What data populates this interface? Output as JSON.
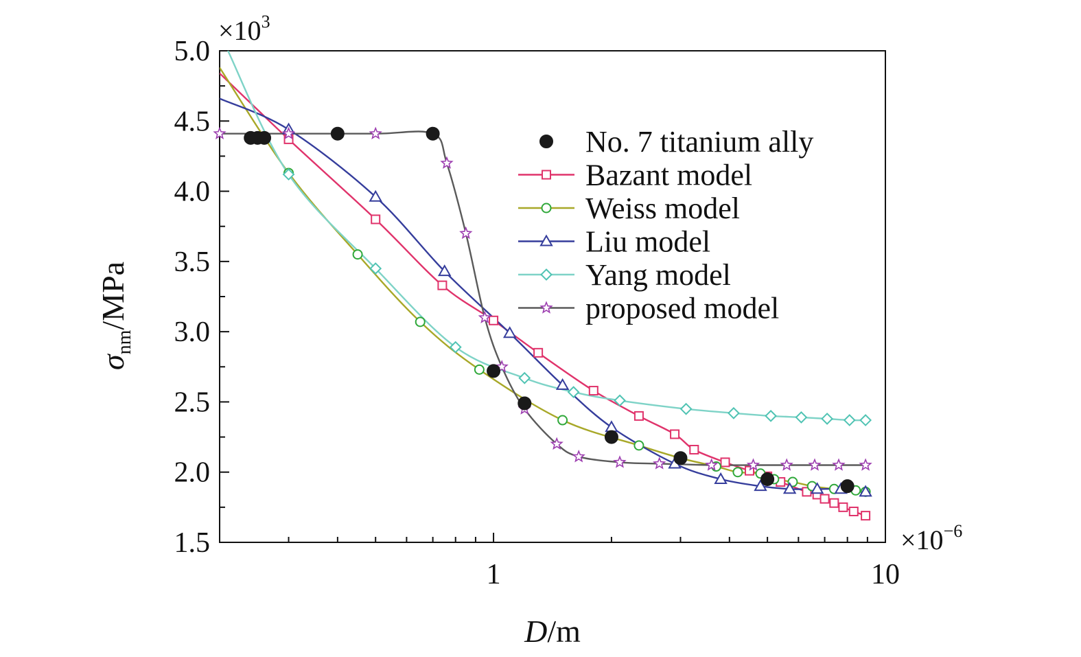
{
  "chart_data": {
    "type": "line",
    "xscale": "log",
    "xlim": [
      0.2,
      10
    ],
    "ylim": [
      1.5,
      5.0
    ],
    "x_multiplier": "×10",
    "x_multiplier_exp": "−6",
    "y_multiplier": "×10",
    "y_multiplier_exp": "3",
    "xlabel_main": "D",
    "xlabel_unit": "/m",
    "ylabel_main": "σ",
    "ylabel_sub": "nm",
    "ylabel_unit": "/MPa",
    "x_tick_labels": [
      {
        "value": 1,
        "label": "1"
      },
      {
        "value": 10,
        "label": "10"
      }
    ],
    "y_tick_labels": [
      {
        "value": 1.5,
        "label": "1.5"
      },
      {
        "value": 2.0,
        "label": "2.0"
      },
      {
        "value": 2.5,
        "label": "2.5"
      },
      {
        "value": 3.0,
        "label": "3.0"
      },
      {
        "value": 3.5,
        "label": "3.5"
      },
      {
        "value": 4.0,
        "label": "4.0"
      },
      {
        "value": 4.5,
        "label": "4.5"
      },
      {
        "value": 5.0,
        "label": "5.0"
      }
    ],
    "legend_position": "top-right",
    "series": [
      {
        "name": "No. 7 titanium ally",
        "kind": "points",
        "marker": "filled-circle",
        "color": "#1a1a1a",
        "x": [
          0.24,
          0.25,
          0.26,
          0.4,
          0.7,
          1.0,
          1.2,
          2.0,
          3.0,
          5.0,
          8.0
        ],
        "y": [
          4.38,
          4.38,
          4.38,
          4.41,
          4.41,
          2.72,
          2.49,
          2.25,
          2.1,
          1.95,
          1.9
        ]
      },
      {
        "name": "Bazant model",
        "kind": "line",
        "marker": "square",
        "color": "#e0336b",
        "marker_color": "#e0336b",
        "x": [
          0.2,
          0.3,
          0.5,
          0.74,
          1.0,
          1.3,
          1.8,
          2.35,
          2.9,
          3.25,
          3.9,
          4.5,
          5.0,
          5.4,
          6.3,
          6.7,
          7.0,
          7.4,
          7.8,
          8.3,
          8.9
        ],
        "y": [
          4.84,
          4.37,
          3.8,
          3.33,
          3.08,
          2.85,
          2.58,
          2.4,
          2.27,
          2.16,
          2.07,
          2.01,
          1.97,
          1.93,
          1.86,
          1.84,
          1.81,
          1.78,
          1.75,
          1.72,
          1.69
        ]
      },
      {
        "name": "Weiss model",
        "kind": "line",
        "marker": "circle",
        "color": "#a8a828",
        "marker_color": "#2fa83a",
        "x": [
          0.2,
          0.3,
          0.45,
          0.65,
          0.92,
          1.5,
          2.35,
          3.0,
          3.7,
          4.2,
          4.8,
          5.2,
          5.8,
          6.5,
          7.4,
          8.4,
          8.9
        ],
        "y": [
          4.88,
          4.13,
          3.55,
          3.07,
          2.73,
          2.37,
          2.19,
          2.1,
          2.04,
          2.0,
          1.99,
          1.95,
          1.93,
          1.9,
          1.88,
          1.87,
          1.86
        ]
      },
      {
        "name": "Liu model",
        "kind": "line",
        "marker": "triangle",
        "color": "#353d9c",
        "marker_color": "#353d9c",
        "x": [
          0.2,
          0.3,
          0.5,
          0.75,
          1.1,
          1.5,
          2.0,
          2.9,
          3.8,
          4.8,
          5.7,
          6.7,
          7.7,
          8.9
        ],
        "y": [
          4.66,
          4.44,
          3.96,
          3.43,
          2.99,
          2.62,
          2.32,
          2.06,
          1.95,
          1.9,
          1.88,
          1.88,
          1.88,
          1.86
        ]
      },
      {
        "name": "Yang model",
        "kind": "line",
        "marker": "diamond",
        "color": "#7ed3c7",
        "marker_color": "#4fc3b3",
        "x": [
          0.21,
          0.3,
          0.5,
          0.8,
          1.2,
          1.6,
          2.1,
          3.1,
          4.1,
          5.1,
          6.1,
          7.1,
          8.1,
          8.9
        ],
        "y": [
          5.0,
          4.12,
          3.45,
          2.89,
          2.67,
          2.57,
          2.51,
          2.45,
          2.42,
          2.4,
          2.39,
          2.38,
          2.37,
          2.37
        ]
      },
      {
        "name": "proposed model",
        "kind": "line",
        "marker": "star",
        "color": "#5a5a5a",
        "marker_color": "#9d3eb0",
        "x": [
          0.2,
          0.3,
          0.5,
          0.7,
          0.76,
          0.85,
          0.95,
          1.05,
          1.2,
          1.45,
          1.65,
          2.1,
          2.65,
          3.6,
          4.6,
          5.6,
          6.6,
          7.6,
          8.9
        ],
        "y": [
          4.41,
          4.41,
          4.41,
          4.41,
          4.2,
          3.7,
          3.1,
          2.75,
          2.45,
          2.2,
          2.11,
          2.07,
          2.06,
          2.05,
          2.05,
          2.05,
          2.05,
          2.05,
          2.05
        ]
      }
    ]
  }
}
